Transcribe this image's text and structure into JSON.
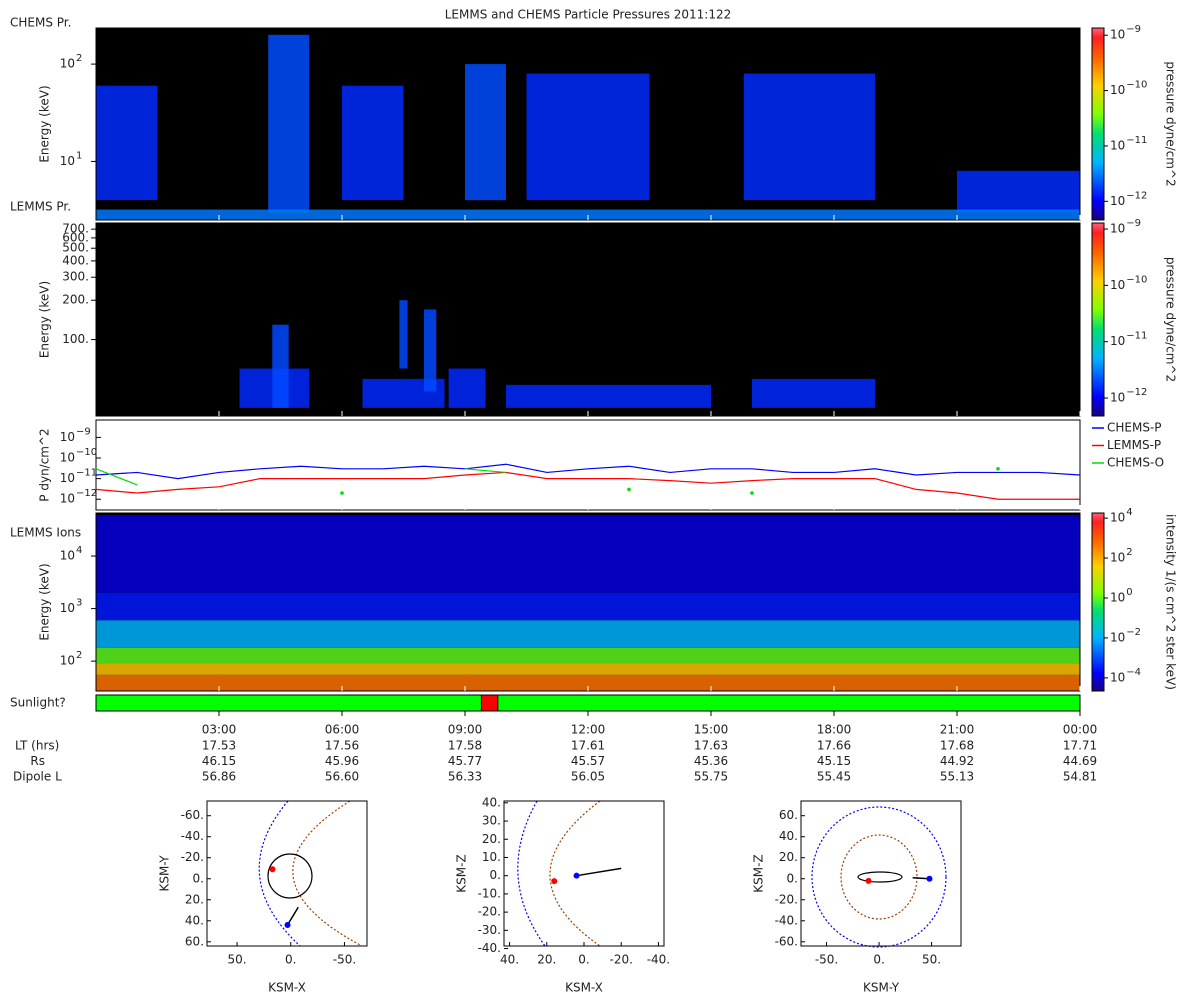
{
  "title": "LEMMS and CHEMS Particle Pressures  2011:122",
  "time_axis": {
    "xlim": [
      0,
      24
    ],
    "xticks": [
      {
        "value": 3,
        "label": "03:00"
      },
      {
        "value": 6,
        "label": "06:00"
      },
      {
        "value": 9,
        "label": "09:00"
      },
      {
        "value": 12,
        "label": "12:00"
      },
      {
        "value": 15,
        "label": "15:00"
      },
      {
        "value": 18,
        "label": "18:00"
      },
      {
        "value": 21,
        "label": "21:00"
      },
      {
        "value": 24,
        "label": "00:00"
      }
    ]
  },
  "chart_data": [
    {
      "type": "spectrogram",
      "panel_label": "CHEMS Pr.",
      "ylabel": "Energy (keV)",
      "log_y": true,
      "ylim": [
        2.5,
        235
      ],
      "yticks": [
        {
          "value": 10,
          "label": "10",
          "exponent": "1"
        },
        {
          "value": 100,
          "label": "10",
          "exponent": "2"
        }
      ],
      "colorbar": {
        "label": "pressure dyne/cm^2",
        "lim": [
          4.6e-13,
          1.35e-09
        ],
        "ticks": [
          {
            "value": 1e-12,
            "label": "10",
            "exponent": "−12"
          },
          {
            "value": 1e-11,
            "label": "10",
            "exponent": "−11"
          },
          {
            "value": 1e-10,
            "label": "10",
            "exponent": "−10"
          },
          {
            "value": 1e-09,
            "label": "10",
            "exponent": "−9"
          }
        ]
      },
      "cells": [
        {
          "hours": [
            0,
            1.5
          ],
          "energy": [
            4,
            60
          ],
          "value": 1.5e-12
        },
        {
          "hours": [
            4.2,
            5.2
          ],
          "energy": [
            3,
            200
          ],
          "value": 2e-12
        },
        {
          "hours": [
            6,
            7.5
          ],
          "energy": [
            4,
            60
          ],
          "value": 1.5e-12
        },
        {
          "hours": [
            9,
            10
          ],
          "energy": [
            4,
            100
          ],
          "value": 2e-12
        },
        {
          "hours": [
            10.5,
            13.5
          ],
          "energy": [
            4,
            80
          ],
          "value": 1.5e-12
        },
        {
          "hours": [
            15.8,
            19
          ],
          "energy": [
            4,
            80
          ],
          "value": 1.5e-12
        },
        {
          "hours": [
            21,
            24
          ],
          "energy": [
            3,
            8
          ],
          "value": 1.5e-12
        },
        {
          "hours": [
            0,
            24
          ],
          "energy": [
            2.5,
            3.2
          ],
          "value": 3e-12
        }
      ]
    },
    {
      "type": "spectrogram",
      "panel_label": "LEMMS Pr.",
      "ylabel": "Energy (keV)",
      "log_y": true,
      "ylim": [
        26,
        780
      ],
      "yticks": [
        {
          "value": 100,
          "label": "100."
        },
        {
          "value": 200,
          "label": "200."
        },
        {
          "value": 300,
          "label": "300."
        },
        {
          "value": 400,
          "label": "400."
        },
        {
          "value": 500,
          "label": "500."
        },
        {
          "value": 600,
          "label": "600."
        },
        {
          "value": 700,
          "label": "700."
        }
      ],
      "colorbar": {
        "label": "pressure dyne/cm^2",
        "lim": [
          4.8e-13,
          1.28e-09
        ],
        "ticks": [
          {
            "value": 1e-12,
            "label": "10",
            "exponent": "−12"
          },
          {
            "value": 1e-11,
            "label": "10",
            "exponent": "−11"
          },
          {
            "value": 1e-10,
            "label": "10",
            "exponent": "−10"
          },
          {
            "value": 1e-09,
            "label": "10",
            "exponent": "−9"
          }
        ]
      },
      "cells": [
        {
          "hours": [
            3.5,
            5.2
          ],
          "energy": [
            30,
            60
          ],
          "value": 1.5e-12
        },
        {
          "hours": [
            4.3,
            4.7
          ],
          "energy": [
            30,
            130
          ],
          "value": 2e-12
        },
        {
          "hours": [
            6.5,
            8.5
          ],
          "energy": [
            30,
            50
          ],
          "value": 1.5e-12
        },
        {
          "hours": [
            7.4,
            7.6
          ],
          "energy": [
            60,
            200
          ],
          "value": 2e-12
        },
        {
          "hours": [
            8,
            8.3
          ],
          "energy": [
            40,
            170
          ],
          "value": 2e-12
        },
        {
          "hours": [
            8.6,
            9.5
          ],
          "energy": [
            30,
            60
          ],
          "value": 1.5e-12
        },
        {
          "hours": [
            10,
            15
          ],
          "energy": [
            30,
            45
          ],
          "value": 1.5e-12
        },
        {
          "hours": [
            16,
            19
          ],
          "energy": [
            30,
            50
          ],
          "value": 1.5e-12
        }
      ]
    },
    {
      "type": "line",
      "ylabel": "P dyn/cm^2",
      "log_y": true,
      "ylim": [
        3e-13,
        7e-09
      ],
      "yticks": [
        {
          "value": 1e-12,
          "label": "10",
          "exponent": "−12"
        },
        {
          "value": 1e-11,
          "label": "10",
          "exponent": "−11"
        },
        {
          "value": 1e-10,
          "label": "10",
          "exponent": "−10"
        },
        {
          "value": 1e-09,
          "label": "10",
          "exponent": "−9"
        }
      ],
      "x": [
        0,
        1,
        2,
        3,
        4,
        5,
        6,
        7,
        8,
        9,
        10,
        11,
        12,
        13,
        14,
        15,
        16,
        17,
        18,
        19,
        20,
        21,
        22,
        23,
        24
      ],
      "series": [
        {
          "name": "CHEMS-P",
          "color": "#0000ff",
          "values": [
            1.5e-11,
            2e-11,
            1e-11,
            2e-11,
            3e-11,
            4e-11,
            3e-11,
            3e-11,
            4e-11,
            3e-11,
            5e-11,
            2e-11,
            3e-11,
            4e-11,
            2e-11,
            3e-11,
            3e-11,
            2e-11,
            2e-11,
            3e-11,
            1.5e-11,
            2e-11,
            2e-11,
            2e-11,
            1.5e-11
          ]
        },
        {
          "name": "LEMMS-P",
          "color": "#ff0000",
          "values": [
            3e-12,
            2e-12,
            3e-12,
            4e-12,
            1e-11,
            1e-11,
            1e-11,
            1e-11,
            1e-11,
            1.5e-11,
            2e-11,
            1e-11,
            1e-11,
            1e-11,
            8e-12,
            6e-12,
            8e-12,
            1e-11,
            1e-11,
            1e-11,
            3e-12,
            2e-12,
            1e-12,
            1e-12,
            1e-12
          ]
        },
        {
          "name": "CHEMS-O",
          "color": "#00dd00",
          "values": [
            3e-11,
            5e-12,
            null,
            null,
            null,
            null,
            2e-12,
            null,
            null,
            3e-11,
            2e-11,
            null,
            null,
            3e-12,
            null,
            null,
            2e-12,
            null,
            null,
            null,
            null,
            null,
            3e-11,
            null,
            null
          ]
        }
      ]
    },
    {
      "type": "spectrogram",
      "panel_label": "LEMMS Ions",
      "ylabel": "Energy (keV)",
      "log_y": true,
      "ylim": [
        27,
        66000
      ],
      "yticks": [
        {
          "value": 100,
          "label": "10",
          "exponent": "2"
        },
        {
          "value": 1000,
          "label": "10",
          "exponent": "3"
        },
        {
          "value": 10000,
          "label": "10",
          "exponent": "4"
        }
      ],
      "colorbar": {
        "label": "intensity 1/(s cm^2 ster keV)",
        "lim": [
          2.2e-05,
          18000.0
        ],
        "ticks": [
          {
            "value": 0.0001,
            "label": "10",
            "exponent": "−4"
          },
          {
            "value": 0.01,
            "label": "10",
            "exponent": "−2"
          },
          {
            "value": 1,
            "label": "10",
            "exponent": "0"
          },
          {
            "value": 100,
            "label": "10",
            "exponent": "2"
          },
          {
            "value": 10000,
            "label": "10",
            "exponent": "4"
          }
        ]
      },
      "cells": [
        {
          "hours": [
            0,
            24
          ],
          "energy": [
            27,
            55
          ],
          "value": 500
        },
        {
          "hours": [
            0,
            24
          ],
          "energy": [
            55,
            90
          ],
          "value": 50
        },
        {
          "hours": [
            0,
            24
          ],
          "energy": [
            90,
            180
          ],
          "value": 1
        },
        {
          "hours": [
            0,
            24
          ],
          "energy": [
            180,
            600
          ],
          "value": 0.01
        },
        {
          "hours": [
            0,
            24
          ],
          "energy": [
            600,
            2000
          ],
          "value": 0.0003
        },
        {
          "hours": [
            0,
            24
          ],
          "energy": [
            2000,
            60000
          ],
          "value": 0.0001
        }
      ]
    },
    {
      "type": "orbit",
      "xlabel": "KSM-X",
      "ylabel": "KSM-Y",
      "xlim": [
        78,
        -71
      ],
      "ylim": [
        64,
        -74
      ],
      "xticks": [
        {
          "value": 50,
          "label": "50."
        },
        {
          "value": 0,
          "label": "0."
        },
        {
          "value": -50,
          "label": "-50."
        }
      ],
      "yticks": [
        {
          "value": -60,
          "label": "-60."
        },
        {
          "value": -40,
          "label": "-40."
        },
        {
          "value": -20,
          "label": "-20."
        },
        {
          "value": 0,
          "label": "0."
        },
        {
          "value": 20,
          "label": "20."
        },
        {
          "value": 40,
          "label": "40."
        },
        {
          "value": 60,
          "label": "60."
        }
      ],
      "points": [
        {
          "color": "#ff0000",
          "x": 17,
          "y": -9
        },
        {
          "color": "#0000ff",
          "x": 3,
          "y": 44
        }
      ],
      "track": {
        "x": [
          3,
          -7
        ],
        "y": [
          44,
          27
        ]
      }
    },
    {
      "type": "orbit",
      "xlabel": "KSM-X",
      "ylabel": "KSM-Z",
      "xlim": [
        43,
        -43
      ],
      "ylim": [
        -38.6,
        41
      ],
      "xticks": [
        {
          "value": 40,
          "label": "40."
        },
        {
          "value": 20,
          "label": "20."
        },
        {
          "value": 0,
          "label": "0."
        },
        {
          "value": -20,
          "label": "-20."
        },
        {
          "value": -40,
          "label": "-40."
        }
      ],
      "yticks": [
        {
          "value": 40,
          "label": "40."
        },
        {
          "value": 30,
          "label": "30."
        },
        {
          "value": 20,
          "label": "20."
        },
        {
          "value": 10,
          "label": "10."
        },
        {
          "value": 0,
          "label": "0."
        },
        {
          "value": -10,
          "label": "-10."
        },
        {
          "value": -20,
          "label": "-20."
        },
        {
          "value": -30,
          "label": "-30."
        },
        {
          "value": -40,
          "label": "-40."
        }
      ],
      "points": [
        {
          "color": "#ff0000",
          "x": 16,
          "y": -3
        },
        {
          "color": "#0000ff",
          "x": 4,
          "y": 0
        }
      ],
      "track": {
        "x": [
          4,
          -20
        ],
        "y": [
          0,
          4
        ]
      }
    },
    {
      "type": "orbit",
      "xlabel": "KSM-Y",
      "ylabel": "KSM-Z",
      "xlim": [
        -74.3,
        78
      ],
      "ylim": [
        -64,
        74
      ],
      "xticks": [
        {
          "value": -50,
          "label": "-50."
        },
        {
          "value": 0,
          "label": "0."
        },
        {
          "value": 50,
          "label": "50."
        }
      ],
      "yticks": [
        {
          "value": 60,
          "label": "60."
        },
        {
          "value": 40,
          "label": "40."
        },
        {
          "value": 20,
          "label": "20."
        },
        {
          "value": 0,
          "label": "0."
        },
        {
          "value": -20,
          "label": "-20."
        },
        {
          "value": -40,
          "label": "-40."
        },
        {
          "value": -60,
          "label": "-60."
        }
      ],
      "points": [
        {
          "color": "#ff0000",
          "x": -10,
          "y": -2
        },
        {
          "color": "#0000ff",
          "x": 48,
          "y": 0
        }
      ],
      "track": {
        "x": [
          32,
          48
        ],
        "y": [
          1,
          0
        ]
      }
    }
  ],
  "sunlight": {
    "label": "Sunlight?",
    "eclipse": [
      9.4,
      9.8
    ]
  },
  "ephemeris": [
    {
      "label": "LT (hrs)",
      "values": [
        "17.53",
        "17.56",
        "17.58",
        "17.61",
        "17.63",
        "17.66",
        "17.68",
        "17.71"
      ]
    },
    {
      "label": "Rs",
      "values": [
        "46.15",
        "45.96",
        "45.77",
        "45.57",
        "45.36",
        "45.15",
        "44.92",
        "44.69"
      ]
    },
    {
      "label": "Dipole L",
      "values": [
        "56.86",
        "56.60",
        "56.33",
        "56.05",
        "55.75",
        "55.45",
        "55.13",
        "54.81"
      ]
    }
  ]
}
